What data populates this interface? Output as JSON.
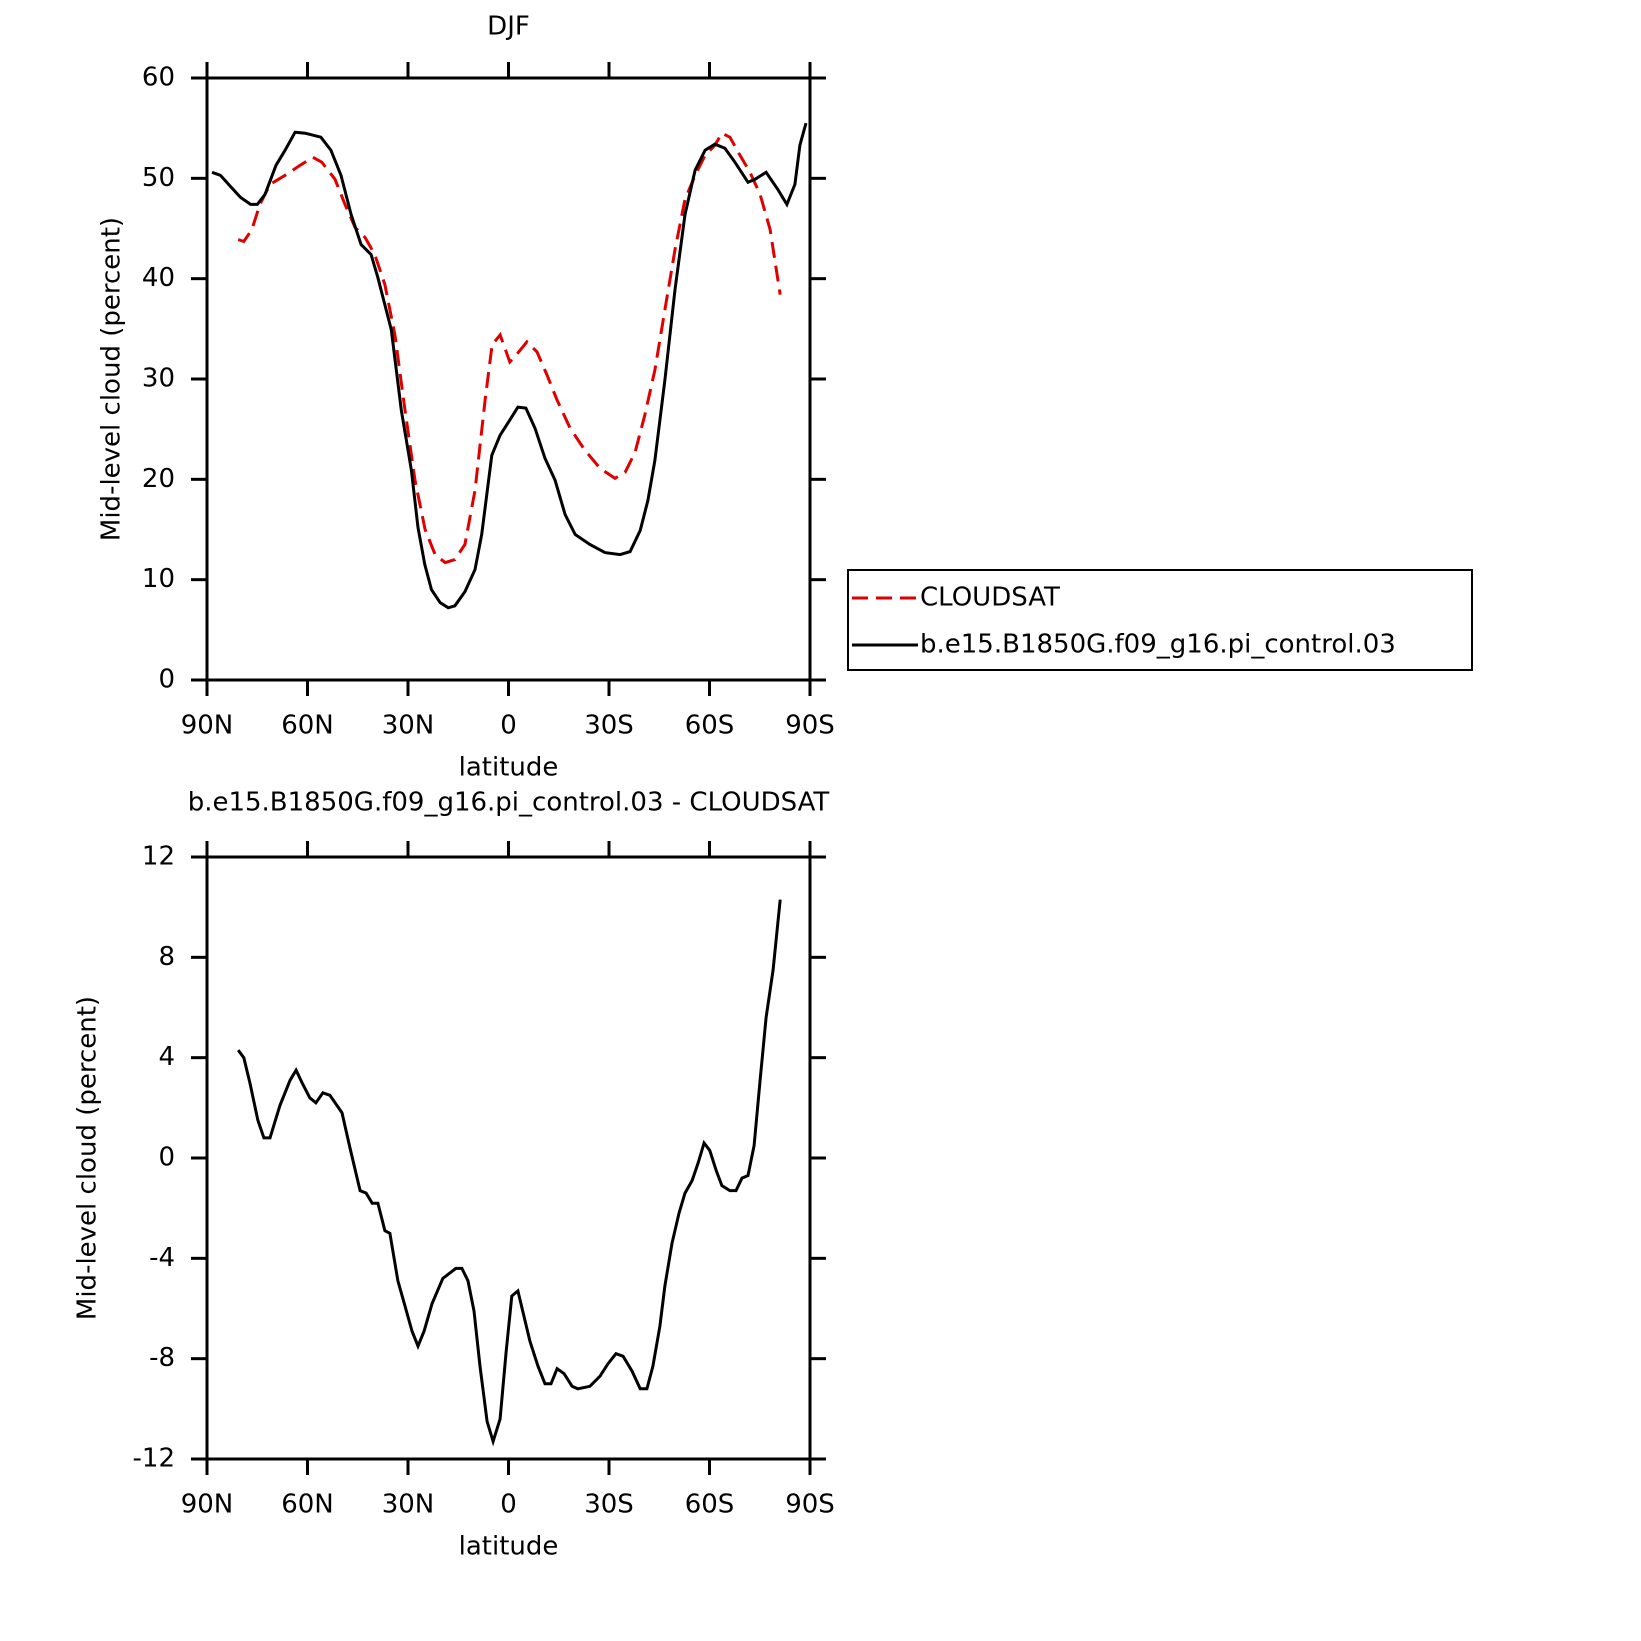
{
  "chart_data": [
    {
      "type": "line",
      "title": "DJF",
      "xlabel": "latitude",
      "ylabel": "Mid-level cloud (percent)",
      "xlim": [
        90,
        -90
      ],
      "xticks": [
        {
          "value": 90,
          "label": "90N"
        },
        {
          "value": 60,
          "label": "60N"
        },
        {
          "value": 30,
          "label": "30N"
        },
        0,
        {
          "value": -30,
          "label": "30S"
        },
        {
          "value": -60,
          "label": "60S"
        },
        {
          "value": -90,
          "label": "90S"
        }
      ],
      "ylim": [
        0,
        60
      ],
      "yticks": [
        0,
        10,
        20,
        30,
        40,
        50,
        60
      ],
      "legend": "right",
      "series": [
        {
          "name": "CLOUDSAT",
          "color": "#e00000",
          "dashed": true,
          "x": [
            80.7,
            79,
            76.6,
            74.2,
            71.2,
            66.7,
            62.2,
            58.4,
            55.7,
            51.8,
            48.8,
            45.8,
            42.8,
            39.9,
            36.9,
            33.9,
            30.9,
            27.9,
            24.9,
            21.9,
            18.9,
            16,
            13,
            10,
            7,
            4.9,
            2.5,
            -0.4,
            -2.8,
            -5.5,
            -8.5,
            -11.5,
            -14.5,
            -18.4,
            -22.8,
            -27.3,
            -31.8,
            -34.8,
            -37.8,
            -40.7,
            -43.7,
            -46.7,
            -49.7,
            -52.7,
            -55.7,
            -58.7,
            -61.6,
            -63.7,
            -66.1,
            -69.1,
            -72.1,
            -75.1,
            -78.1,
            -81.1
          ],
          "values": [
            43.9,
            43.7,
            44.9,
            47.4,
            49.4,
            50.3,
            51.3,
            52.1,
            51.6,
            49.9,
            47.4,
            45.1,
            44.1,
            42.4,
            39.4,
            34.4,
            26.9,
            19.9,
            15.0,
            12.5,
            11.7,
            12.0,
            13.5,
            18.9,
            27.9,
            33.4,
            34.4,
            31.7,
            32.6,
            33.7,
            32.7,
            30.4,
            27.9,
            25.1,
            22.9,
            21.1,
            20.1,
            20.7,
            22.7,
            26.4,
            30.9,
            36.9,
            42.9,
            47.9,
            50.3,
            52.3,
            53.3,
            54.5,
            54.1,
            52.3,
            50.6,
            48.4,
            44.9,
            38.4
          ]
        },
        {
          "name": "b.e15.B1850G.f09_g16.pi_control.03",
          "color": "#000000",
          "dashed": false,
          "x": [
            88.5,
            86,
            83,
            80,
            77,
            75,
            72.7,
            69.4,
            66.7,
            63.7,
            60.7,
            56,
            53,
            50,
            47,
            44,
            41,
            39,
            35,
            32,
            29,
            27,
            25,
            23,
            20.4,
            18,
            16,
            13,
            10,
            8,
            5,
            2.5,
            -0.4,
            -2.8,
            -5.2,
            -7.9,
            -10.9,
            -13.9,
            -16.9,
            -19.9,
            -24.3,
            -28.8,
            -33.3,
            -36.3,
            -39.3,
            -41.6,
            -43.7,
            -46.7,
            -49.7,
            -52.7,
            -55.7,
            -58.7,
            -61.6,
            -64.6,
            -67.6,
            -71.5,
            -73.6,
            -76.9,
            -80.4,
            -83.1,
            -85.5,
            -87,
            -88.8
          ],
          "values": [
            50.6,
            50.3,
            49.2,
            48.1,
            47.4,
            47.4,
            48.4,
            51.3,
            52.8,
            54.6,
            54.5,
            54.1,
            52.8,
            50.3,
            46.4,
            43.4,
            42.4,
            40.1,
            34.9,
            26.9,
            20.9,
            15.2,
            11.5,
            9.0,
            7.7,
            7.2,
            7.4,
            8.8,
            11.0,
            14.5,
            22.4,
            24.4,
            25.9,
            27.2,
            27.1,
            25.1,
            22.1,
            19.9,
            16.5,
            14.5,
            13.5,
            12.7,
            12.5,
            12.8,
            14.9,
            17.9,
            21.9,
            29.9,
            38.9,
            46.4,
            50.8,
            52.8,
            53.4,
            53.0,
            51.6,
            49.6,
            49.9,
            50.6,
            48.9,
            47.4,
            49.4,
            53.3,
            55.5
          ]
        }
      ]
    },
    {
      "type": "line",
      "title": "b.e15.B1850G.f09_g16.pi_control.03 - CLOUDSAT",
      "xlabel": "latitude",
      "ylabel": "Mid-level cloud (percent)",
      "xlim": [
        90,
        -90
      ],
      "xticks": [
        {
          "value": 90,
          "label": "90N"
        },
        {
          "value": 60,
          "label": "60N"
        },
        {
          "value": 30,
          "label": "30N"
        },
        0,
        {
          "value": -30,
          "label": "30S"
        },
        {
          "value": -60,
          "label": "60S"
        },
        {
          "value": -90,
          "label": "90S"
        }
      ],
      "ylim": [
        -12,
        12
      ],
      "yticks": [
        -12,
        -8,
        -4,
        0,
        4,
        8,
        12
      ],
      "series": [
        {
          "color": "#000000",
          "dashed": false,
          "x": [
            80.7,
            79,
            77.2,
            74.8,
            73,
            71.2,
            68.2,
            65.2,
            63.4,
            61.6,
            59.3,
            57.5,
            55.4,
            53.3,
            49.7,
            47.3,
            44.3,
            42.5,
            40.7,
            39,
            36.9,
            35.4,
            33,
            30.9,
            28.8,
            27,
            25.2,
            22.8,
            19.6,
            15.7,
            13.9,
            12.1,
            10.3,
            8.5,
            6.4,
            4.6,
            2.5,
            0.7,
            -1.0,
            -2.8,
            -6.4,
            -8.8,
            -10.9,
            -12.7,
            -14.5,
            -16.6,
            -19.0,
            -20.7,
            -24.3,
            -27.3,
            -29.7,
            -32.1,
            -34.2,
            -36.9,
            -39.3,
            -41.3,
            -43.1,
            -45.2,
            -46.7,
            -48.8,
            -50.9,
            -52.7,
            -54.8,
            -56.6,
            -58.4,
            -60.1,
            -62.0,
            -63.7,
            -66.1,
            -67.9,
            -69.7,
            -71.5,
            -73.3,
            -75.1,
            -76.9,
            -79.0,
            -81.1
          ],
          "values": [
            4.3,
            4.0,
            3.0,
            1.5,
            0.8,
            0.8,
            2.1,
            3.1,
            3.5,
            3.0,
            2.4,
            2.2,
            2.6,
            2.5,
            1.8,
            0.4,
            -1.3,
            -1.4,
            -1.8,
            -1.8,
            -2.9,
            -3.0,
            -4.9,
            -5.9,
            -6.9,
            -7.5,
            -6.9,
            -5.8,
            -4.8,
            -4.4,
            -4.4,
            -4.9,
            -6.1,
            -8.3,
            -10.5,
            -11.3,
            -10.4,
            -7.7,
            -5.5,
            -5.3,
            -7.3,
            -8.3,
            -9.0,
            -9.0,
            -8.4,
            -8.6,
            -9.1,
            -9.2,
            -9.1,
            -8.7,
            -8.2,
            -7.8,
            -7.9,
            -8.5,
            -9.2,
            -9.2,
            -8.3,
            -6.7,
            -5.1,
            -3.4,
            -2.2,
            -1.4,
            -0.9,
            -0.2,
            0.6,
            0.3,
            -0.5,
            -1.1,
            -1.3,
            -1.3,
            -0.8,
            -0.7,
            0.5,
            3.1,
            5.6,
            7.5,
            10.3
          ]
        }
      ]
    }
  ]
}
